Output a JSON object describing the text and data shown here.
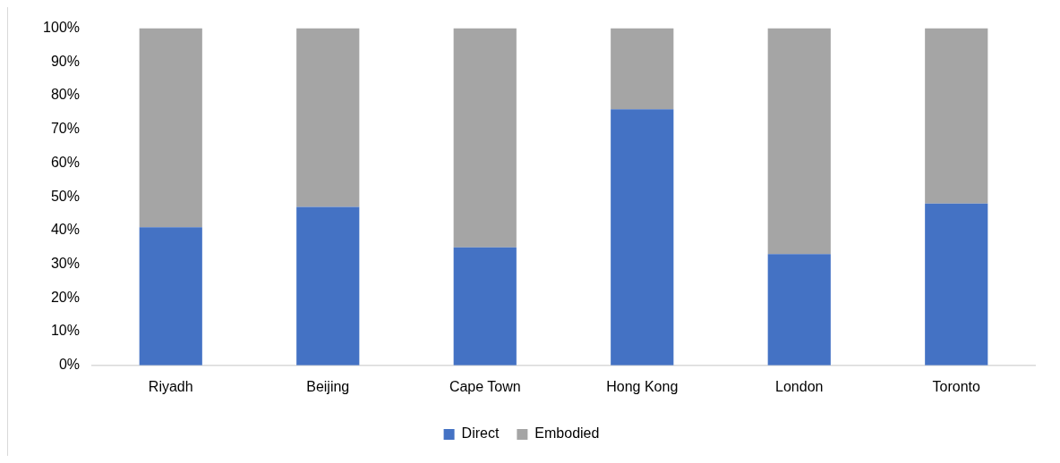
{
  "chart_data": {
    "type": "bar",
    "stacked": true,
    "legend": "bottom",
    "categories": [
      "Riyadh",
      "Beijing",
      "Cape Town",
      "Hong Kong",
      "London",
      "Toronto"
    ],
    "series": [
      {
        "name": "Direct",
        "color": "#4472c4",
        "values": [
          41,
          47,
          35,
          76,
          33,
          48
        ]
      },
      {
        "name": "Embodied",
        "color": "#a5a5a5",
        "values": [
          59,
          53,
          65,
          24,
          67,
          52
        ]
      }
    ],
    "ylim": [
      0,
      100
    ],
    "yticks": [
      {
        "value": 0,
        "label": "0%"
      },
      {
        "value": 10,
        "label": "10%"
      },
      {
        "value": 20,
        "label": "20%"
      },
      {
        "value": 30,
        "label": "30%"
      },
      {
        "value": 40,
        "label": "40%"
      },
      {
        "value": 50,
        "label": "50%"
      },
      {
        "value": 60,
        "label": "60%"
      },
      {
        "value": 70,
        "label": "70%"
      },
      {
        "value": 80,
        "label": "80%"
      },
      {
        "value": 90,
        "label": "90%"
      },
      {
        "value": 100,
        "label": "100%"
      }
    ]
  }
}
